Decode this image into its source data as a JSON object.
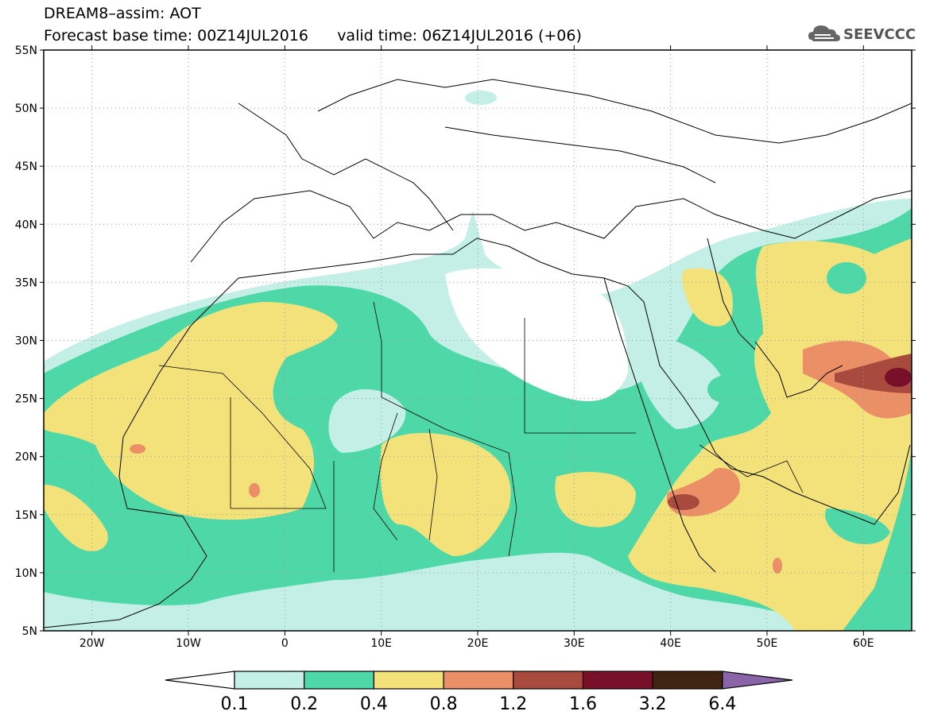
{
  "title": {
    "line1": "DREAM8–assim: AOT",
    "line2": "Forecast base time: 00Z14JUL2016      valid time: 06Z14JUL2016 (+06)"
  },
  "logo": {
    "text": "SEEVCCC",
    "icon": "cloud-logo-icon"
  },
  "axes": {
    "lat_labels": [
      "55N",
      "50N",
      "45N",
      "40N",
      "35N",
      "30N",
      "25N",
      "20N",
      "15N",
      "10N",
      "5N"
    ],
    "lon_labels": [
      "20W",
      "10W",
      "0",
      "10E",
      "20E",
      "30E",
      "40E",
      "50E",
      "60E"
    ],
    "lat_range": [
      5,
      55
    ],
    "lon_range": [
      -25,
      65
    ]
  },
  "colorbar": {
    "labels": [
      "0.1",
      "0.2",
      "0.4",
      "0.8",
      "1.2",
      "1.6",
      "3.2",
      "6.4"
    ],
    "colors": [
      "#ffffff",
      "#c3efe6",
      "#4ed8a8",
      "#f3e27a",
      "#ea8f66",
      "#a94a3e",
      "#78102a",
      "#3f2412",
      "#8a63a8"
    ]
  },
  "colors": {
    "c1": "#c3efe6",
    "c2": "#4ed8a8",
    "c3": "#f3e27a",
    "c4": "#ea8f66",
    "c5": "#a94a3e",
    "c6": "#78102a"
  }
}
